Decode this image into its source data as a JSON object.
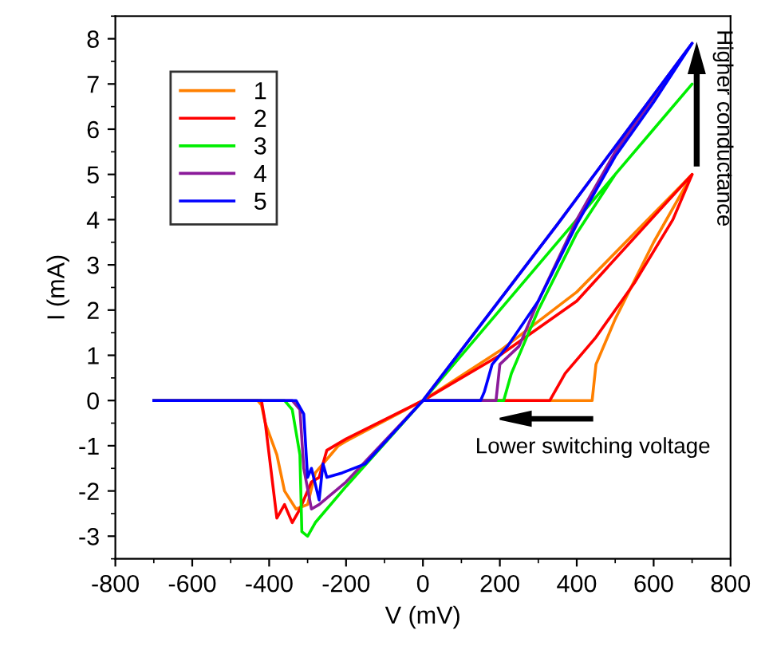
{
  "chart_data": {
    "type": "line",
    "xlabel": "V (mV)",
    "ylabel": "I (mA)",
    "xlim": [
      -800,
      800
    ],
    "xticks": [
      -800,
      -600,
      -400,
      -200,
      0,
      200,
      400,
      600,
      800
    ],
    "ylim": [
      -3.5,
      8.5
    ],
    "yticks": [
      -3,
      -2,
      -1,
      0,
      1,
      2,
      3,
      4,
      5,
      6,
      7,
      8
    ],
    "grid": false,
    "legend": "top left",
    "line_style": "solid",
    "marker": "none",
    "annotations": [
      "Higher conductance",
      "Lower switching voltage"
    ],
    "series": [
      {
        "name": "1",
        "color": "#ff8000",
        "x": [
          -700,
          -430,
          -420,
          -410,
          -380,
          -360,
          -330,
          -300,
          -280,
          -240,
          -220,
          -200,
          0,
          440,
          450,
          500,
          600,
          700,
          400,
          200,
          0
        ],
        "values": [
          0,
          0,
          -0.1,
          -0.5,
          -1.2,
          -2.0,
          -2.4,
          -2.3,
          -1.6,
          -1.2,
          -1.0,
          -0.9,
          0,
          0,
          0.8,
          1.8,
          3.5,
          5,
          2.4,
          1.1,
          0
        ]
      },
      {
        "name": "2",
        "color": "#ff0000",
        "x": [
          -700,
          -420,
          -410,
          -390,
          -380,
          -360,
          -340,
          -320,
          -290,
          -270,
          -250,
          -200,
          0,
          330,
          370,
          450,
          550,
          650,
          700,
          400,
          200,
          0
        ],
        "values": [
          0,
          0,
          -0.5,
          -1.9,
          -2.6,
          -2.3,
          -2.7,
          -2.4,
          -1.8,
          -1.7,
          -1.1,
          -0.85,
          0,
          0,
          0.6,
          1.4,
          2.6,
          4.0,
          5,
          2.2,
          1.0,
          0
        ]
      },
      {
        "name": "3",
        "color": "#00ee00",
        "x": [
          -700,
          -360,
          -340,
          -320,
          -315,
          -300,
          -280,
          -200,
          0,
          210,
          230,
          260,
          300,
          400,
          500,
          600,
          700,
          0
        ],
        "values": [
          0,
          0,
          -0.2,
          -1.2,
          -2.9,
          -3.0,
          -2.7,
          -1.9,
          0,
          0,
          0.6,
          1.2,
          2.0,
          3.7,
          5.0,
          6.0,
          7,
          0
        ]
      },
      {
        "name": "4",
        "color": "#8b1a9a",
        "x": [
          -700,
          -340,
          -320,
          -310,
          -290,
          -270,
          -200,
          -100,
          0,
          190,
          200,
          250,
          300,
          400,
          500,
          600,
          700,
          350,
          0
        ],
        "values": [
          0,
          0,
          -0.2,
          -1.5,
          -2.4,
          -2.3,
          -1.8,
          -0.9,
          0,
          0,
          0.8,
          1.2,
          2.2,
          4.0,
          5.5,
          6.7,
          7.9,
          3.9,
          0
        ]
      },
      {
        "name": "5",
        "color": "#0000ff",
        "x": [
          -700,
          -330,
          -310,
          -300,
          -290,
          -270,
          -260,
          -250,
          -210,
          -150,
          0,
          150,
          160,
          180,
          220,
          300,
          400,
          500,
          600,
          700,
          350,
          0
        ],
        "values": [
          0,
          0,
          -0.3,
          -1.7,
          -1.5,
          -2.2,
          -1.4,
          -1.7,
          -1.6,
          -1.4,
          0,
          0,
          0.2,
          0.8,
          1.2,
          2.2,
          3.9,
          5.4,
          6.6,
          7.9,
          3.9,
          0
        ]
      }
    ]
  }
}
